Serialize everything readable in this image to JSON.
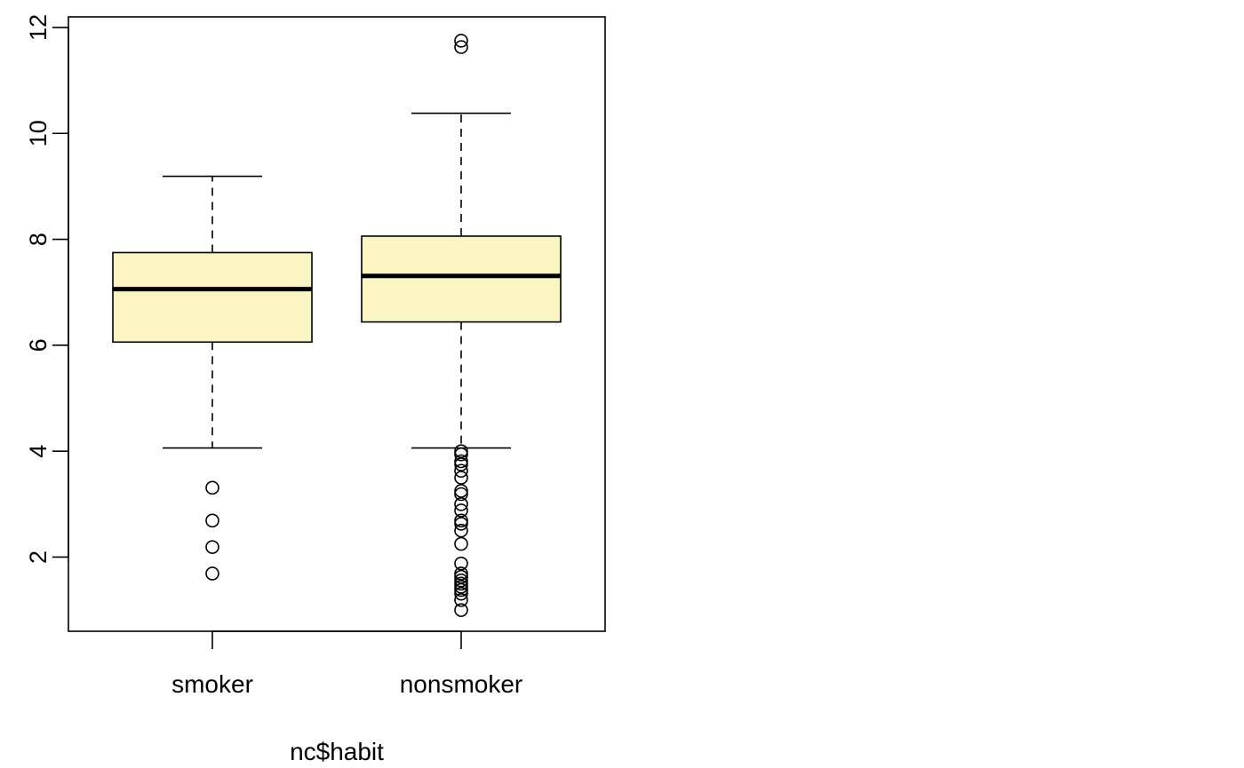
{
  "chart_data": {
    "type": "boxplot",
    "xlabel": "nc$habit",
    "ylabel": "",
    "ylim": [
      0.6,
      12.2
    ],
    "yticks": [
      2,
      4,
      6,
      8,
      10,
      12
    ],
    "grid": false,
    "box_color": "#FAF5C3",
    "categories": [
      "smoker",
      "nonsmoker"
    ],
    "boxes": [
      {
        "category": "smoker",
        "whisker_low": 4.06,
        "q1": 6.06,
        "median": 7.06,
        "q3": 7.75,
        "whisker_high": 9.19,
        "outliers": [
          3.31,
          2.69,
          2.19,
          1.69
        ]
      },
      {
        "category": "nonsmoker",
        "whisker_low": 4.06,
        "q1": 6.44,
        "median": 7.31,
        "q3": 8.06,
        "whisker_high": 10.38,
        "outliers": [
          11.75,
          11.63,
          4.0,
          3.94,
          3.81,
          3.75,
          3.63,
          3.5,
          3.25,
          3.19,
          3.0,
          2.88,
          2.69,
          2.63,
          2.5,
          2.25,
          1.88,
          1.69,
          1.63,
          1.56,
          1.5,
          1.44,
          1.38,
          1.31,
          1.19,
          1.0
        ]
      }
    ]
  }
}
